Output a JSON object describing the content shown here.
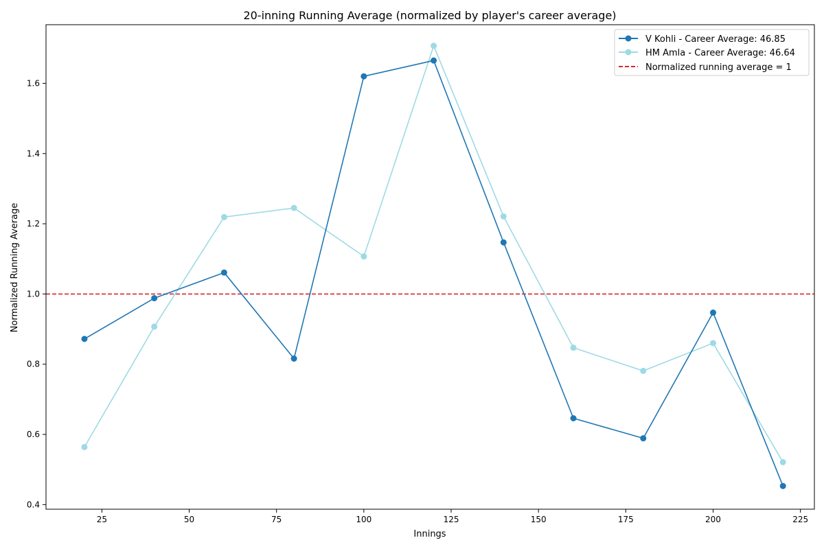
{
  "chart_data": {
    "type": "line",
    "title": "20-inning Running Average (normalized by player's career average)",
    "xlabel": "Innings",
    "ylabel": "Normalized Running Average",
    "xlim": [
      9,
      229
    ],
    "ylim": [
      0.387,
      1.767
    ],
    "xticks": [
      25,
      50,
      75,
      100,
      125,
      150,
      175,
      200,
      225
    ],
    "yticks": [
      0.4,
      0.6,
      0.8,
      1.0,
      1.2,
      1.4,
      1.6
    ],
    "x": [
      20,
      40,
      60,
      80,
      100,
      120,
      140,
      160,
      180,
      200,
      220
    ],
    "series": [
      {
        "name": "V Kohli - Career Average: 46.85",
        "color": "#1f77b4",
        "marker": "circle",
        "linestyle": "solid",
        "values": [
          0.872,
          0.988,
          1.061,
          0.816,
          1.62,
          1.665,
          1.147,
          0.646,
          0.589,
          0.947,
          0.453
        ]
      },
      {
        "name": "HM Amla - Career Average: 46.64",
        "color": "#9edae5",
        "marker": "circle",
        "linestyle": "solid",
        "values": [
          0.564,
          0.907,
          1.219,
          1.245,
          1.107,
          1.707,
          1.221,
          0.847,
          0.781,
          0.86,
          0.521
        ]
      }
    ],
    "reference_line": {
      "name": "Normalized running average = 1",
      "y": 1.0,
      "color": "#d62728",
      "linestyle": "dashed"
    },
    "grid": false,
    "legend": "top-right"
  }
}
